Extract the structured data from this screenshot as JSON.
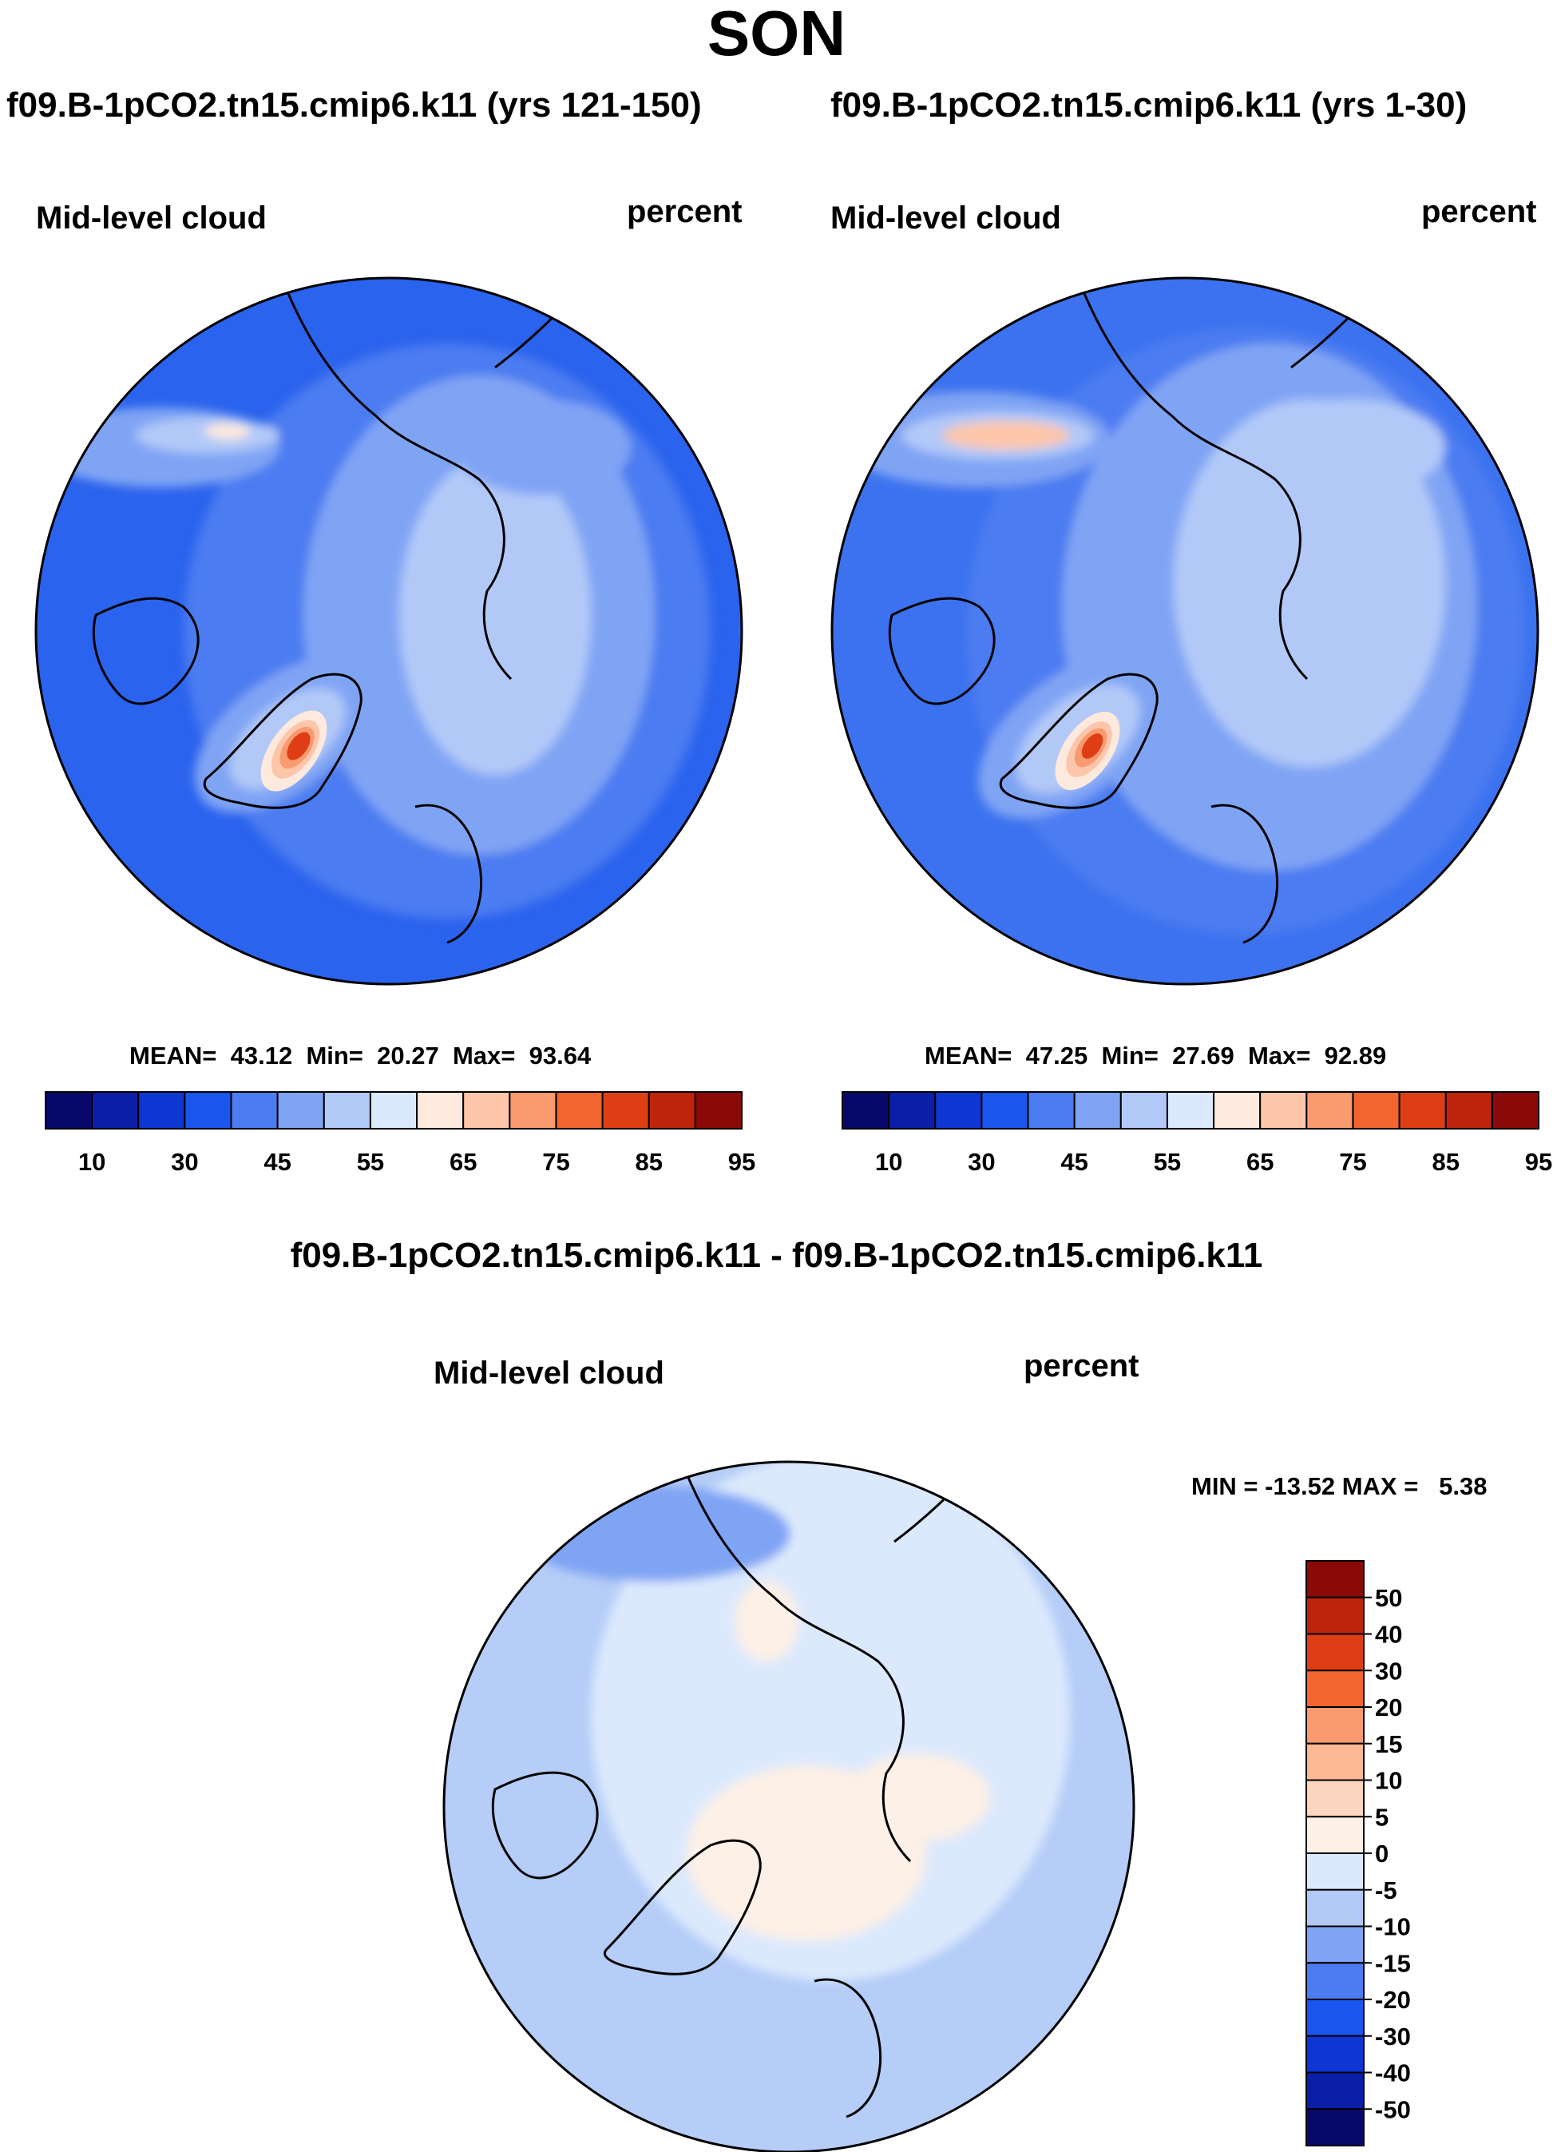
{
  "chart_data": [
    {
      "type": "heatmap",
      "projection": "north-polar-stereographic",
      "title": "f09.B-1pCO2.tn15.cmip6.k11 (yrs 121-150)",
      "left_label": "Mid-level cloud",
      "right_label": "percent",
      "stats": {
        "mean_label": "MEAN=",
        "mean": "43.12",
        "min_label": "Min=",
        "min": "20.27",
        "max_label": "Max=",
        "max": "93.64"
      },
      "colorbar": {
        "orientation": "horizontal",
        "ticks": [
          "10",
          "30",
          "45",
          "55",
          "65",
          "75",
          "85",
          "95"
        ],
        "colors": [
          "#08086b",
          "#0a1ea8",
          "#0d36d3",
          "#1a55ee",
          "#4b7cf1",
          "#80a4f4",
          "#b2c9f8",
          "#dce9fd",
          "#fde9dd",
          "#fdc6ab",
          "#f99a6f",
          "#f3652e",
          "#df3e14",
          "#bc240b",
          "#8a0a0a"
        ]
      },
      "field": {
        "background": "#2a63ed",
        "greenland_max": 93.64
      }
    },
    {
      "type": "heatmap",
      "projection": "north-polar-stereographic",
      "title": "f09.B-1pCO2.tn15.cmip6.k11 (yrs 1-30)",
      "left_label": "Mid-level cloud",
      "right_label": "percent",
      "stats": {
        "mean_label": "MEAN=",
        "mean": "47.25",
        "min_label": "Min=",
        "min": "27.69",
        "max_label": "Max=",
        "max": "92.89"
      },
      "colorbar": {
        "orientation": "horizontal",
        "ticks": [
          "10",
          "30",
          "45",
          "55",
          "65",
          "75",
          "85",
          "95"
        ],
        "colors": [
          "#08086b",
          "#0a1ea8",
          "#0d36d3",
          "#1a55ee",
          "#4b7cf1",
          "#80a4f4",
          "#b2c9f8",
          "#dce9fd",
          "#fde9dd",
          "#fdc6ab",
          "#f99a6f",
          "#f3652e",
          "#df3e14",
          "#bc240b",
          "#8a0a0a"
        ]
      },
      "field": {
        "background": "#3c72ef",
        "greenland_max": 92.89
      }
    },
    {
      "type": "heatmap",
      "projection": "north-polar-stereographic",
      "title": "f09.B-1pCO2.tn15.cmip6.k11 - f09.B-1pCO2.tn15.cmip6.k11",
      "left_label": "Mid-level cloud",
      "right_label": "percent",
      "stats": {
        "min_label": "MIN =",
        "min": "-13.52",
        "max_label": "MAX =",
        "max": "5.38"
      },
      "colorbar": {
        "orientation": "vertical",
        "ticks": [
          "50",
          "40",
          "30",
          "20",
          "15",
          "10",
          "5",
          "0",
          "-5",
          "-10",
          "-15",
          "-20",
          "-30",
          "-40",
          "-50"
        ],
        "colors": [
          "#8a0a0a",
          "#bc240b",
          "#df3e14",
          "#f3652e",
          "#f99a6f",
          "#fdb896",
          "#fdd6c0",
          "#fdf0e6",
          "#dce9fd",
          "#b2c9f8",
          "#80a4f4",
          "#4b7cf1",
          "#1a55ee",
          "#0d36d3",
          "#0a1ea8",
          "#08086b"
        ]
      },
      "field": {
        "background": "#b5cdf7"
      }
    }
  ],
  "page": {
    "title": "SON"
  }
}
